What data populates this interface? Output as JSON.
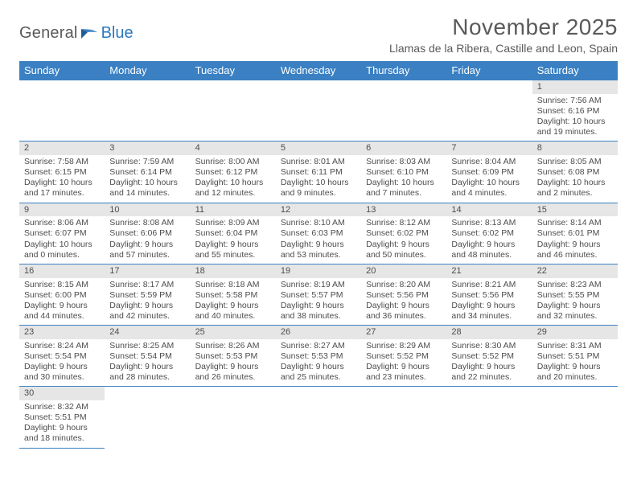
{
  "logo": {
    "text1": "General",
    "text2": "Blue"
  },
  "header": {
    "title": "November 2025",
    "subtitle": "Llamas de la Ribera, Castille and Leon, Spain"
  },
  "colors": {
    "header_bg": "#3a80c3",
    "header_text": "#ffffff",
    "daynum_bg": "#e6e6e6",
    "border": "#3a80c3",
    "body_text": "#4d4d4d",
    "logo_gray": "#5a5a5a",
    "logo_blue": "#2b78bd"
  },
  "typography": {
    "title_fontsize": 28,
    "subtitle_fontsize": 14,
    "weekday_fontsize": 13,
    "cell_fontsize": 10.5,
    "daynum_fontsize": 11
  },
  "layout": {
    "columns": 7,
    "column_width_pct": 14.285
  },
  "weekdays": [
    "Sunday",
    "Monday",
    "Tuesday",
    "Wednesday",
    "Thursday",
    "Friday",
    "Saturday"
  ],
  "labels": {
    "sunrise_prefix": "Sunrise: ",
    "sunset_prefix": "Sunset: ",
    "daylight_prefix": "Daylight: "
  },
  "weeks": [
    [
      null,
      null,
      null,
      null,
      null,
      null,
      {
        "d": "1",
        "sunrise": "7:56 AM",
        "sunset": "6:16 PM",
        "daylight_l1": "10 hours",
        "daylight_l2": "and 19 minutes."
      }
    ],
    [
      {
        "d": "2",
        "sunrise": "7:58 AM",
        "sunset": "6:15 PM",
        "daylight_l1": "10 hours",
        "daylight_l2": "and 17 minutes."
      },
      {
        "d": "3",
        "sunrise": "7:59 AM",
        "sunset": "6:14 PM",
        "daylight_l1": "10 hours",
        "daylight_l2": "and 14 minutes."
      },
      {
        "d": "4",
        "sunrise": "8:00 AM",
        "sunset": "6:12 PM",
        "daylight_l1": "10 hours",
        "daylight_l2": "and 12 minutes."
      },
      {
        "d": "5",
        "sunrise": "8:01 AM",
        "sunset": "6:11 PM",
        "daylight_l1": "10 hours",
        "daylight_l2": "and 9 minutes."
      },
      {
        "d": "6",
        "sunrise": "8:03 AM",
        "sunset": "6:10 PM",
        "daylight_l1": "10 hours",
        "daylight_l2": "and 7 minutes."
      },
      {
        "d": "7",
        "sunrise": "8:04 AM",
        "sunset": "6:09 PM",
        "daylight_l1": "10 hours",
        "daylight_l2": "and 4 minutes."
      },
      {
        "d": "8",
        "sunrise": "8:05 AM",
        "sunset": "6:08 PM",
        "daylight_l1": "10 hours",
        "daylight_l2": "and 2 minutes."
      }
    ],
    [
      {
        "d": "9",
        "sunrise": "8:06 AM",
        "sunset": "6:07 PM",
        "daylight_l1": "10 hours",
        "daylight_l2": "and 0 minutes."
      },
      {
        "d": "10",
        "sunrise": "8:08 AM",
        "sunset": "6:06 PM",
        "daylight_l1": "9 hours",
        "daylight_l2": "and 57 minutes."
      },
      {
        "d": "11",
        "sunrise": "8:09 AM",
        "sunset": "6:04 PM",
        "daylight_l1": "9 hours",
        "daylight_l2": "and 55 minutes."
      },
      {
        "d": "12",
        "sunrise": "8:10 AM",
        "sunset": "6:03 PM",
        "daylight_l1": "9 hours",
        "daylight_l2": "and 53 minutes."
      },
      {
        "d": "13",
        "sunrise": "8:12 AM",
        "sunset": "6:02 PM",
        "daylight_l1": "9 hours",
        "daylight_l2": "and 50 minutes."
      },
      {
        "d": "14",
        "sunrise": "8:13 AM",
        "sunset": "6:02 PM",
        "daylight_l1": "9 hours",
        "daylight_l2": "and 48 minutes."
      },
      {
        "d": "15",
        "sunrise": "8:14 AM",
        "sunset": "6:01 PM",
        "daylight_l1": "9 hours",
        "daylight_l2": "and 46 minutes."
      }
    ],
    [
      {
        "d": "16",
        "sunrise": "8:15 AM",
        "sunset": "6:00 PM",
        "daylight_l1": "9 hours",
        "daylight_l2": "and 44 minutes."
      },
      {
        "d": "17",
        "sunrise": "8:17 AM",
        "sunset": "5:59 PM",
        "daylight_l1": "9 hours",
        "daylight_l2": "and 42 minutes."
      },
      {
        "d": "18",
        "sunrise": "8:18 AM",
        "sunset": "5:58 PM",
        "daylight_l1": "9 hours",
        "daylight_l2": "and 40 minutes."
      },
      {
        "d": "19",
        "sunrise": "8:19 AM",
        "sunset": "5:57 PM",
        "daylight_l1": "9 hours",
        "daylight_l2": "and 38 minutes."
      },
      {
        "d": "20",
        "sunrise": "8:20 AM",
        "sunset": "5:56 PM",
        "daylight_l1": "9 hours",
        "daylight_l2": "and 36 minutes."
      },
      {
        "d": "21",
        "sunrise": "8:21 AM",
        "sunset": "5:56 PM",
        "daylight_l1": "9 hours",
        "daylight_l2": "and 34 minutes."
      },
      {
        "d": "22",
        "sunrise": "8:23 AM",
        "sunset": "5:55 PM",
        "daylight_l1": "9 hours",
        "daylight_l2": "and 32 minutes."
      }
    ],
    [
      {
        "d": "23",
        "sunrise": "8:24 AM",
        "sunset": "5:54 PM",
        "daylight_l1": "9 hours",
        "daylight_l2": "and 30 minutes."
      },
      {
        "d": "24",
        "sunrise": "8:25 AM",
        "sunset": "5:54 PM",
        "daylight_l1": "9 hours",
        "daylight_l2": "and 28 minutes."
      },
      {
        "d": "25",
        "sunrise": "8:26 AM",
        "sunset": "5:53 PM",
        "daylight_l1": "9 hours",
        "daylight_l2": "and 26 minutes."
      },
      {
        "d": "26",
        "sunrise": "8:27 AM",
        "sunset": "5:53 PM",
        "daylight_l1": "9 hours",
        "daylight_l2": "and 25 minutes."
      },
      {
        "d": "27",
        "sunrise": "8:29 AM",
        "sunset": "5:52 PM",
        "daylight_l1": "9 hours",
        "daylight_l2": "and 23 minutes."
      },
      {
        "d": "28",
        "sunrise": "8:30 AM",
        "sunset": "5:52 PM",
        "daylight_l1": "9 hours",
        "daylight_l2": "and 22 minutes."
      },
      {
        "d": "29",
        "sunrise": "8:31 AM",
        "sunset": "5:51 PM",
        "daylight_l1": "9 hours",
        "daylight_l2": "and 20 minutes."
      }
    ],
    [
      {
        "d": "30",
        "sunrise": "8:32 AM",
        "sunset": "5:51 PM",
        "daylight_l1": "9 hours",
        "daylight_l2": "and 18 minutes."
      },
      null,
      null,
      null,
      null,
      null,
      null
    ]
  ]
}
